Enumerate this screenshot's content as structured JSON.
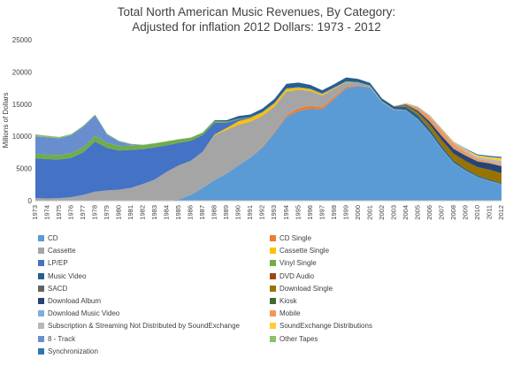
{
  "chart_data": {
    "type": "area",
    "title": "Total North American Music Revenues, By Category:",
    "subtitle": "Adjusted for inflation 2012 Dollars: 1973 - 2012",
    "xlabel": "",
    "ylabel": "Millions of Dollars",
    "ylim": [
      0,
      25000
    ],
    "yticks": [
      "0",
      "5000",
      "10000",
      "15000",
      "20000",
      "25000"
    ],
    "grid": false,
    "legend_placement": "bottom",
    "categories": [
      "1973",
      "1974",
      "1975",
      "1976",
      "1977",
      "1978",
      "1979",
      "1980",
      "1981",
      "1982",
      "1983",
      "1984",
      "1985",
      "1986",
      "1987",
      "1988",
      "1989",
      "1990",
      "1991",
      "1992",
      "1993",
      "1994",
      "1995",
      "1996",
      "1997",
      "1998",
      "1999",
      "2000",
      "2001",
      "2002",
      "2003",
      "2004",
      "2005",
      "2006",
      "2007",
      "2008",
      "2009",
      "2010",
      "2011",
      "2012"
    ],
    "series": [
      {
        "name": "CD",
        "color": "#5b9bd5",
        "values": [
          0,
          0,
          0,
          0,
          0,
          0,
          0,
          0,
          0,
          0,
          0,
          0,
          200,
          900,
          2000,
          3200,
          4200,
          5500,
          6700,
          8300,
          10500,
          13000,
          13900,
          14300,
          14200,
          15800,
          17500,
          17800,
          17600,
          15300,
          14100,
          14000,
          12600,
          10500,
          8000,
          5800,
          4600,
          3600,
          3000,
          2500
        ]
      },
      {
        "name": "CD Single",
        "color": "#ed7d31",
        "values": [
          0,
          0,
          0,
          0,
          0,
          0,
          0,
          0,
          0,
          0,
          0,
          0,
          0,
          0,
          0,
          0,
          0,
          0,
          0,
          100,
          150,
          250,
          450,
          450,
          350,
          300,
          200,
          100,
          50,
          20,
          20,
          10,
          10,
          5,
          0,
          0,
          0,
          0,
          0,
          0
        ]
      },
      {
        "name": "Cassette",
        "color": "#a5a5a5",
        "values": [
          400,
          350,
          400,
          550,
          900,
          1400,
          1600,
          1700,
          2000,
          2600,
          3300,
          4500,
          5300,
          5300,
          5600,
          7000,
          6800,
          6300,
          5600,
          4800,
          4000,
          3700,
          2900,
          2300,
          1800,
          1300,
          700,
          400,
          150,
          50,
          20,
          0,
          0,
          0,
          0,
          0,
          0,
          0,
          0,
          0
        ]
      },
      {
        "name": "Cassette Single",
        "color": "#ffc000",
        "values": [
          0,
          0,
          0,
          0,
          0,
          0,
          0,
          0,
          0,
          0,
          0,
          0,
          0,
          0,
          0,
          100,
          300,
          550,
          550,
          500,
          450,
          400,
          300,
          250,
          200,
          100,
          50,
          20,
          0,
          0,
          0,
          0,
          0,
          0,
          0,
          0,
          0,
          0,
          0,
          0
        ]
      },
      {
        "name": "LP/EP",
        "color": "#4472c4",
        "values": [
          6200,
          6100,
          6000,
          6100,
          6600,
          7800,
          6600,
          6100,
          5900,
          5400,
          5000,
          4100,
          3500,
          3100,
          2600,
          1800,
          800,
          300,
          100,
          50,
          50,
          50,
          50,
          50,
          50,
          50,
          50,
          50,
          50,
          50,
          50,
          50,
          50,
          50,
          50,
          50,
          50,
          50,
          50,
          50
        ]
      },
      {
        "name": "Vinyl Single",
        "color": "#70ad47",
        "values": [
          700,
          700,
          700,
          750,
          800,
          900,
          800,
          700,
          650,
          600,
          600,
          600,
          550,
          500,
          400,
          300,
          200,
          100,
          50,
          50,
          50,
          50,
          50,
          50,
          50,
          50,
          50,
          50,
          50,
          50,
          50,
          50,
          50,
          50,
          50,
          50,
          50,
          50,
          50,
          50
        ]
      },
      {
        "name": "Music Video",
        "color": "#255e91",
        "values": [
          0,
          0,
          0,
          0,
          0,
          0,
          0,
          0,
          0,
          0,
          0,
          0,
          0,
          0,
          0,
          100,
          200,
          400,
          400,
          500,
          600,
          700,
          700,
          600,
          500,
          500,
          600,
          500,
          400,
          400,
          400,
          500,
          600,
          500,
          400,
          300,
          250,
          200,
          200,
          150
        ]
      },
      {
        "name": "DVD Audio",
        "color": "#9e480e",
        "values": [
          0,
          0,
          0,
          0,
          0,
          0,
          0,
          0,
          0,
          0,
          0,
          0,
          0,
          0,
          0,
          0,
          0,
          0,
          0,
          0,
          0,
          0,
          0,
          0,
          0,
          0,
          0,
          0,
          0,
          10,
          20,
          20,
          20,
          10,
          5,
          0,
          0,
          0,
          0,
          0
        ]
      },
      {
        "name": "SACD",
        "color": "#636363",
        "values": [
          0,
          0,
          0,
          0,
          0,
          0,
          0,
          0,
          0,
          0,
          0,
          0,
          0,
          0,
          0,
          0,
          0,
          0,
          0,
          0,
          0,
          0,
          0,
          0,
          0,
          0,
          0,
          0,
          0,
          10,
          20,
          20,
          20,
          10,
          5,
          0,
          0,
          0,
          0,
          0
        ]
      },
      {
        "name": "Download Single",
        "color": "#997300",
        "values": [
          0,
          0,
          0,
          0,
          0,
          0,
          0,
          0,
          0,
          0,
          0,
          0,
          0,
          0,
          0,
          0,
          0,
          0,
          0,
          0,
          0,
          0,
          0,
          0,
          0,
          0,
          0,
          0,
          0,
          0,
          0,
          200,
          400,
          700,
          900,
          1100,
          1200,
          1300,
          1500,
          1500
        ]
      },
      {
        "name": "Download Album",
        "color": "#264478",
        "values": [
          0,
          0,
          0,
          0,
          0,
          0,
          0,
          0,
          0,
          0,
          0,
          0,
          0,
          0,
          0,
          0,
          0,
          0,
          0,
          0,
          0,
          0,
          0,
          0,
          0,
          0,
          0,
          0,
          0,
          0,
          0,
          100,
          250,
          450,
          650,
          750,
          850,
          900,
          1000,
          1100
        ]
      },
      {
        "name": "Kiosk",
        "color": "#43682b",
        "values": [
          0,
          0,
          0,
          0,
          0,
          0,
          0,
          0,
          0,
          0,
          0,
          0,
          0,
          0,
          0,
          0,
          0,
          0,
          0,
          0,
          0,
          0,
          0,
          0,
          0,
          0,
          0,
          0,
          0,
          0,
          0,
          0,
          0,
          0,
          0,
          10,
          10,
          10,
          10,
          10
        ]
      },
      {
        "name": "Download Music Video",
        "color": "#7cafdd",
        "values": [
          0,
          0,
          0,
          0,
          0,
          0,
          0,
          0,
          0,
          0,
          0,
          0,
          0,
          0,
          0,
          0,
          0,
          0,
          0,
          0,
          0,
          0,
          0,
          0,
          0,
          0,
          0,
          0,
          0,
          0,
          0,
          0,
          20,
          30,
          30,
          30,
          30,
          30,
          30,
          30
        ]
      },
      {
        "name": "Mobile",
        "color": "#f1975a",
        "values": [
          0,
          0,
          0,
          0,
          0,
          0,
          0,
          0,
          0,
          0,
          0,
          0,
          0,
          0,
          0,
          0,
          0,
          0,
          0,
          0,
          0,
          0,
          0,
          0,
          0,
          0,
          0,
          0,
          0,
          0,
          0,
          100,
          400,
          700,
          800,
          700,
          500,
          350,
          250,
          150
        ]
      },
      {
        "name": "Subscription & Streaming Not Distributed by SoundExchange",
        "color": "#b7b7b7",
        "values": [
          0,
          0,
          0,
          0,
          0,
          0,
          0,
          0,
          0,
          0,
          0,
          0,
          0,
          0,
          0,
          0,
          0,
          0,
          0,
          0,
          0,
          0,
          0,
          0,
          0,
          0,
          0,
          0,
          0,
          0,
          0,
          100,
          200,
          250,
          300,
          300,
          300,
          300,
          400,
          600
        ]
      },
      {
        "name": "SoundExchange Distributions",
        "color": "#ffcd33",
        "values": [
          0,
          0,
          0,
          0,
          0,
          0,
          0,
          0,
          0,
          0,
          0,
          0,
          0,
          0,
          0,
          0,
          0,
          0,
          0,
          0,
          0,
          0,
          0,
          0,
          0,
          0,
          0,
          0,
          0,
          0,
          0,
          20,
          30,
          40,
          60,
          100,
          150,
          250,
          290,
          470
        ]
      },
      {
        "name": "8 - Track",
        "color": "#698ed0",
        "values": [
          2700,
          2700,
          2600,
          2800,
          3200,
          3200,
          1300,
          700,
          200,
          50,
          0,
          0,
          0,
          0,
          0,
          0,
          0,
          0,
          0,
          0,
          0,
          0,
          0,
          0,
          0,
          0,
          0,
          0,
          0,
          0,
          0,
          0,
          0,
          0,
          0,
          0,
          0,
          0,
          0,
          0
        ]
      },
      {
        "name": "Other Tapes",
        "color": "#8cc168",
        "values": [
          300,
          250,
          200,
          150,
          150,
          100,
          100,
          100,
          100,
          50,
          50,
          50,
          0,
          0,
          0,
          0,
          0,
          0,
          0,
          0,
          0,
          0,
          0,
          0,
          0,
          0,
          0,
          0,
          0,
          0,
          0,
          0,
          0,
          0,
          0,
          0,
          0,
          0,
          0,
          0
        ]
      },
      {
        "name": "Synchronization",
        "color": "#2e75b6",
        "values": [
          0,
          0,
          0,
          0,
          0,
          0,
          0,
          0,
          0,
          0,
          0,
          0,
          0,
          0,
          0,
          0,
          0,
          0,
          0,
          0,
          0,
          0,
          0,
          0,
          0,
          0,
          0,
          0,
          0,
          0,
          0,
          0,
          0,
          0,
          0,
          0,
          100,
          150,
          200,
          200
        ]
      }
    ],
    "stack_order": [
      "CD",
      "CD Single",
      "Cassette",
      "Cassette Single",
      "LP/EP",
      "Vinyl Single",
      "Music Video",
      "DVD Audio",
      "SACD",
      "Download Single",
      "Download Album",
      "Kiosk",
      "Download Music Video",
      "Mobile",
      "Subscription & Streaming Not Distributed by SoundExchange",
      "SoundExchange Distributions",
      "8 - Track",
      "Other Tapes",
      "Synchronization"
    ]
  }
}
